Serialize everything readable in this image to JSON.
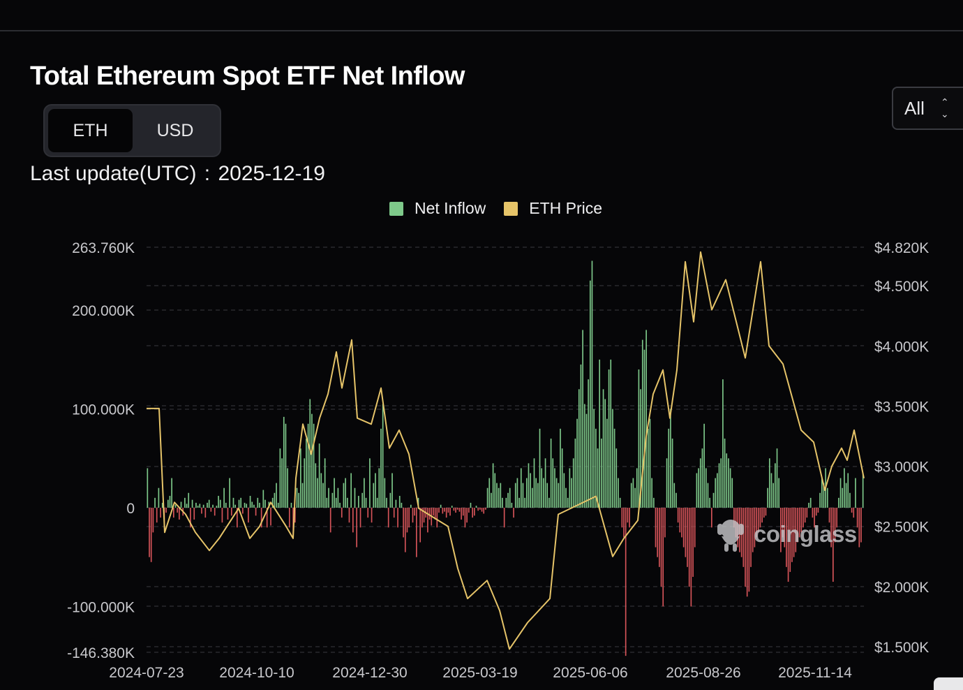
{
  "header": {
    "title": "Total Ethereum Spot ETF Net Inflow",
    "unit_options": [
      "ETH",
      "USD"
    ],
    "selected_unit": "ETH",
    "range_value": "All",
    "update_label": "Last update(UTC)",
    "update_value": "2025-12-19"
  },
  "watermark": "coinglass",
  "colors": {
    "inflow_positive": "#7ec98a",
    "inflow_negative": "#d65459",
    "price_line": "#e6c469",
    "legend_inflow": "#7ec98a",
    "legend_price": "#e6c469",
    "grid": "#3a3b40",
    "axis_text": "#c8c8cc"
  },
  "chart_data": {
    "type": "bar",
    "title": "Total Ethereum Spot ETF Net Inflow",
    "series": [
      {
        "name": "Net Inflow",
        "axis": "left",
        "type": "bar",
        "x_range": [
          "2024-07-23",
          "2025-12-19"
        ],
        "values": [
          40000,
          -50000,
          -55000,
          -25000,
          10000,
          -15000,
          20000,
          -10000,
          5000,
          -20000,
          -5000,
          8000,
          12000,
          30000,
          -10000,
          3000,
          -5000,
          -12000,
          6000,
          -8000,
          10000,
          4000,
          15000,
          -20000,
          8000,
          -12000,
          5000,
          2000,
          4000,
          -6000,
          3000,
          -10000,
          5000,
          8000,
          -4000,
          3000,
          -8000,
          2000,
          12000,
          8000,
          -15000,
          20000,
          5000,
          -12000,
          30000,
          -8000,
          10000,
          3000,
          -20000,
          8000,
          10000,
          -6000,
          5000,
          4000,
          -15000,
          12000,
          6000,
          3000,
          -8000,
          10000,
          5000,
          -20000,
          18000,
          8000,
          -20000,
          6000,
          -18000,
          10000,
          15000,
          25000,
          5000,
          60000,
          50000,
          92000,
          85000,
          40000,
          -20000,
          5000,
          -30000,
          -15000,
          20000,
          15000,
          60000,
          25000,
          50000,
          70000,
          85000,
          110000,
          95000,
          85000,
          45000,
          30000,
          65000,
          35000,
          25000,
          50000,
          10000,
          20000,
          -25000,
          15000,
          30000,
          10000,
          20000,
          5000,
          -10000,
          25000,
          30000,
          10000,
          -15000,
          35000,
          -25000,
          20000,
          -40000,
          12000,
          -20000,
          15000,
          30000,
          10000,
          -10000,
          50000,
          -15000,
          25000,
          35000,
          10000,
          40000,
          80000,
          105000,
          30000,
          10000,
          -20000,
          15000,
          35000,
          -10000,
          8000,
          -20000,
          12000,
          5000,
          -30000,
          -45000,
          -25000,
          -20000,
          3000,
          -15000,
          -8000,
          -50000,
          10000,
          -35000,
          -20000,
          -15000,
          -10000,
          -25000,
          -12000,
          -18000,
          -8000,
          -12000,
          -20000,
          -5000,
          3000,
          -6000,
          -4000,
          -10000,
          -5000,
          -8000,
          2000,
          -3000,
          -5000,
          -2000,
          -4000,
          -12000,
          -8000,
          -20000,
          -15000,
          -5000,
          5000,
          -10000,
          -8000,
          2000,
          -3000,
          -2000,
          -4000,
          -6000,
          -2000,
          20000,
          30000,
          15000,
          45000,
          35000,
          25000,
          20000,
          25000,
          10000,
          -20000,
          10000,
          15000,
          20000,
          5000,
          -10000,
          25000,
          30000,
          10000,
          40000,
          25000,
          10000,
          30000,
          45000,
          35000,
          20000,
          50000,
          30000,
          25000,
          80000,
          40000,
          30000,
          50000,
          25000,
          10000,
          70000,
          50000,
          40000,
          30000,
          25000,
          80000,
          60000,
          35000,
          20000,
          10000,
          40000,
          30000,
          50000,
          70000,
          90000,
          120000,
          145000,
          180000,
          105000,
          95000,
          130000,
          230000,
          250000,
          100000,
          80000,
          60000,
          150000,
          70000,
          120000,
          110000,
          90000,
          140000,
          150000,
          100000,
          80000,
          60000,
          30000,
          10000,
          -20000,
          -30000,
          -150000,
          -15000,
          -20000,
          25000,
          30000,
          20000,
          40000,
          140000,
          120000,
          170000,
          160000,
          180000,
          80000,
          90000,
          30000,
          10000,
          -40000,
          -50000,
          -60000,
          -80000,
          -100000,
          -30000,
          50000,
          80000,
          100000,
          70000,
          25000,
          15000,
          -15000,
          -25000,
          -30000,
          -40000,
          -50000,
          -60000,
          -80000,
          -100000,
          -70000,
          -40000,
          35000,
          40000,
          50000,
          60000,
          85000,
          40000,
          25000,
          10000,
          -20000,
          15000,
          30000,
          35000,
          45000,
          50000,
          130000,
          70000,
          55000,
          50000,
          40000,
          30000,
          -20000,
          -30000,
          -40000,
          -45000,
          -50000,
          -60000,
          -80000,
          -90000,
          -85000,
          -60000,
          -45000,
          -40000,
          -30000,
          -25000,
          -20000,
          -15000,
          -10000,
          -8000,
          20000,
          50000,
          35000,
          25000,
          45000,
          60000,
          30000,
          -45000,
          -30000,
          -40000,
          -60000,
          -75000,
          -65000,
          -55000,
          -50000,
          -45000,
          -35000,
          -30000,
          -25000,
          -20000,
          -15000,
          -10000,
          5000,
          10000,
          -10000,
          -20000,
          -8000,
          -5000,
          15000,
          30000,
          25000,
          40000,
          20000,
          -15000,
          -40000,
          -75000,
          -35000,
          -20000,
          10000,
          30000,
          20000,
          40000,
          25000,
          35000,
          15000,
          -5000,
          -10000,
          30000,
          -20000,
          -40000,
          -35000,
          35000
        ]
      },
      {
        "name": "ETH Price",
        "axis": "right",
        "type": "line",
        "points": [
          [
            "2024-07-23",
            3480
          ],
          [
            "2024-08-01",
            3480
          ],
          [
            "2024-08-05",
            2450
          ],
          [
            "2024-08-12",
            2700
          ],
          [
            "2024-08-20",
            2600
          ],
          [
            "2024-08-27",
            2450
          ],
          [
            "2024-09-06",
            2300
          ],
          [
            "2024-09-13",
            2400
          ],
          [
            "2024-09-27",
            2650
          ],
          [
            "2024-10-05",
            2400
          ],
          [
            "2024-10-12",
            2500
          ],
          [
            "2024-10-20",
            2700
          ],
          [
            "2024-10-31",
            2500
          ],
          [
            "2024-11-05",
            2400
          ],
          [
            "2024-11-07",
            2900
          ],
          [
            "2024-11-12",
            3350
          ],
          [
            "2024-11-18",
            3100
          ],
          [
            "2024-11-24",
            3400
          ],
          [
            "2024-11-30",
            3600
          ],
          [
            "2024-12-06",
            3950
          ],
          [
            "2024-12-10",
            3650
          ],
          [
            "2024-12-17",
            4050
          ],
          [
            "2024-12-21",
            3400
          ],
          [
            "2024-12-31",
            3350
          ],
          [
            "2025-01-07",
            3650
          ],
          [
            "2025-01-13",
            3150
          ],
          [
            "2025-01-20",
            3300
          ],
          [
            "2025-01-27",
            3100
          ],
          [
            "2025-02-03",
            2650
          ],
          [
            "2025-02-10",
            2600
          ],
          [
            "2025-02-24",
            2500
          ],
          [
            "2025-03-03",
            2150
          ],
          [
            "2025-03-10",
            1900
          ],
          [
            "2025-03-24",
            2050
          ],
          [
            "2025-04-02",
            1800
          ],
          [
            "2025-04-09",
            1480
          ],
          [
            "2025-04-22",
            1700
          ],
          [
            "2025-05-08",
            1900
          ],
          [
            "2025-05-14",
            2600
          ],
          [
            "2025-05-23",
            2650
          ],
          [
            "2025-06-10",
            2750
          ],
          [
            "2025-06-22",
            2250
          ],
          [
            "2025-06-30",
            2400
          ],
          [
            "2025-07-10",
            2550
          ],
          [
            "2025-07-16",
            3250
          ],
          [
            "2025-07-21",
            3600
          ],
          [
            "2025-07-28",
            3800
          ],
          [
            "2025-08-02",
            3400
          ],
          [
            "2025-08-07",
            3800
          ],
          [
            "2025-08-13",
            4700
          ],
          [
            "2025-08-19",
            4200
          ],
          [
            "2025-08-24",
            4780
          ],
          [
            "2025-09-01",
            4300
          ],
          [
            "2025-09-11",
            4550
          ],
          [
            "2025-09-25",
            3900
          ],
          [
            "2025-10-06",
            4700
          ],
          [
            "2025-10-12",
            4000
          ],
          [
            "2025-10-22",
            3850
          ],
          [
            "2025-11-04",
            3300
          ],
          [
            "2025-11-13",
            3200
          ],
          [
            "2025-11-21",
            2800
          ],
          [
            "2025-11-26",
            3000
          ],
          [
            "2025-12-03",
            3150
          ],
          [
            "2025-12-07",
            3050
          ],
          [
            "2025-12-12",
            3300
          ],
          [
            "2025-12-19",
            2900
          ]
        ]
      }
    ],
    "y_left": {
      "min": -146380,
      "max": 263760,
      "ticks": [
        "263.760K",
        "200.000K",
        "100.000K",
        "0",
        "-100.000K",
        "-146.380K"
      ]
    },
    "y_right": {
      "min": 1500,
      "max": 4820,
      "ticks": [
        "$4.820K",
        "$4.500K",
        "$4.000K",
        "$3.500K",
        "$3.000K",
        "$2.500K",
        "$2.000K",
        "$1.500K"
      ]
    },
    "x_ticks": [
      "2024-07-23",
      "2024-10-10",
      "2024-12-30",
      "2025-03-19",
      "2025-06-06",
      "2025-08-26",
      "2025-11-14"
    ],
    "grid": true,
    "legend_position": "top-center"
  }
}
